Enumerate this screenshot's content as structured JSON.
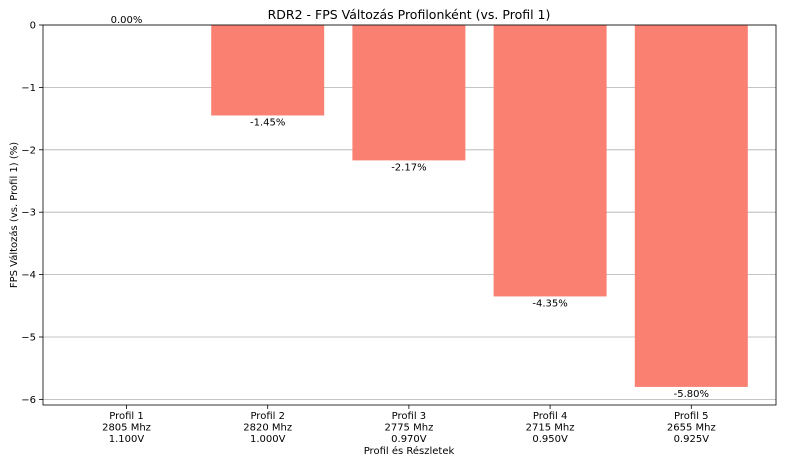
{
  "chart_data": {
    "type": "bar",
    "title": "RDR2 - FPS Változás Profilonként (vs. Profil 1)",
    "xlabel": "Profil és Részletek",
    "ylabel": "FPS Változás (vs. Profil 1) (%)",
    "categories": [
      [
        "Profil 1",
        "2805 Mhz",
        "1.100V"
      ],
      [
        "Profil 2",
        "2820 Mhz",
        "1.000V"
      ],
      [
        "Profil 3",
        "2775 Mhz",
        "0.970V"
      ],
      [
        "Profil 4",
        "2715 Mhz",
        "0.950V"
      ],
      [
        "Profil 5",
        "2655 Mhz",
        "0.925V"
      ]
    ],
    "values": [
      0.0,
      -1.45,
      -2.17,
      -4.35,
      -5.8
    ],
    "value_labels": [
      "0.00%",
      "-1.45%",
      "-2.17%",
      "-4.35%",
      "-5.80%"
    ],
    "ylim": [
      -6.09,
      0
    ],
    "yticks": [
      0,
      -1,
      -2,
      -3,
      -4,
      -5,
      -6
    ],
    "ytick_labels": [
      "0",
      "−1",
      "−2",
      "−3",
      "−4",
      "−5",
      "−6"
    ],
    "bar_color": "#fa8072",
    "grid": "y"
  }
}
